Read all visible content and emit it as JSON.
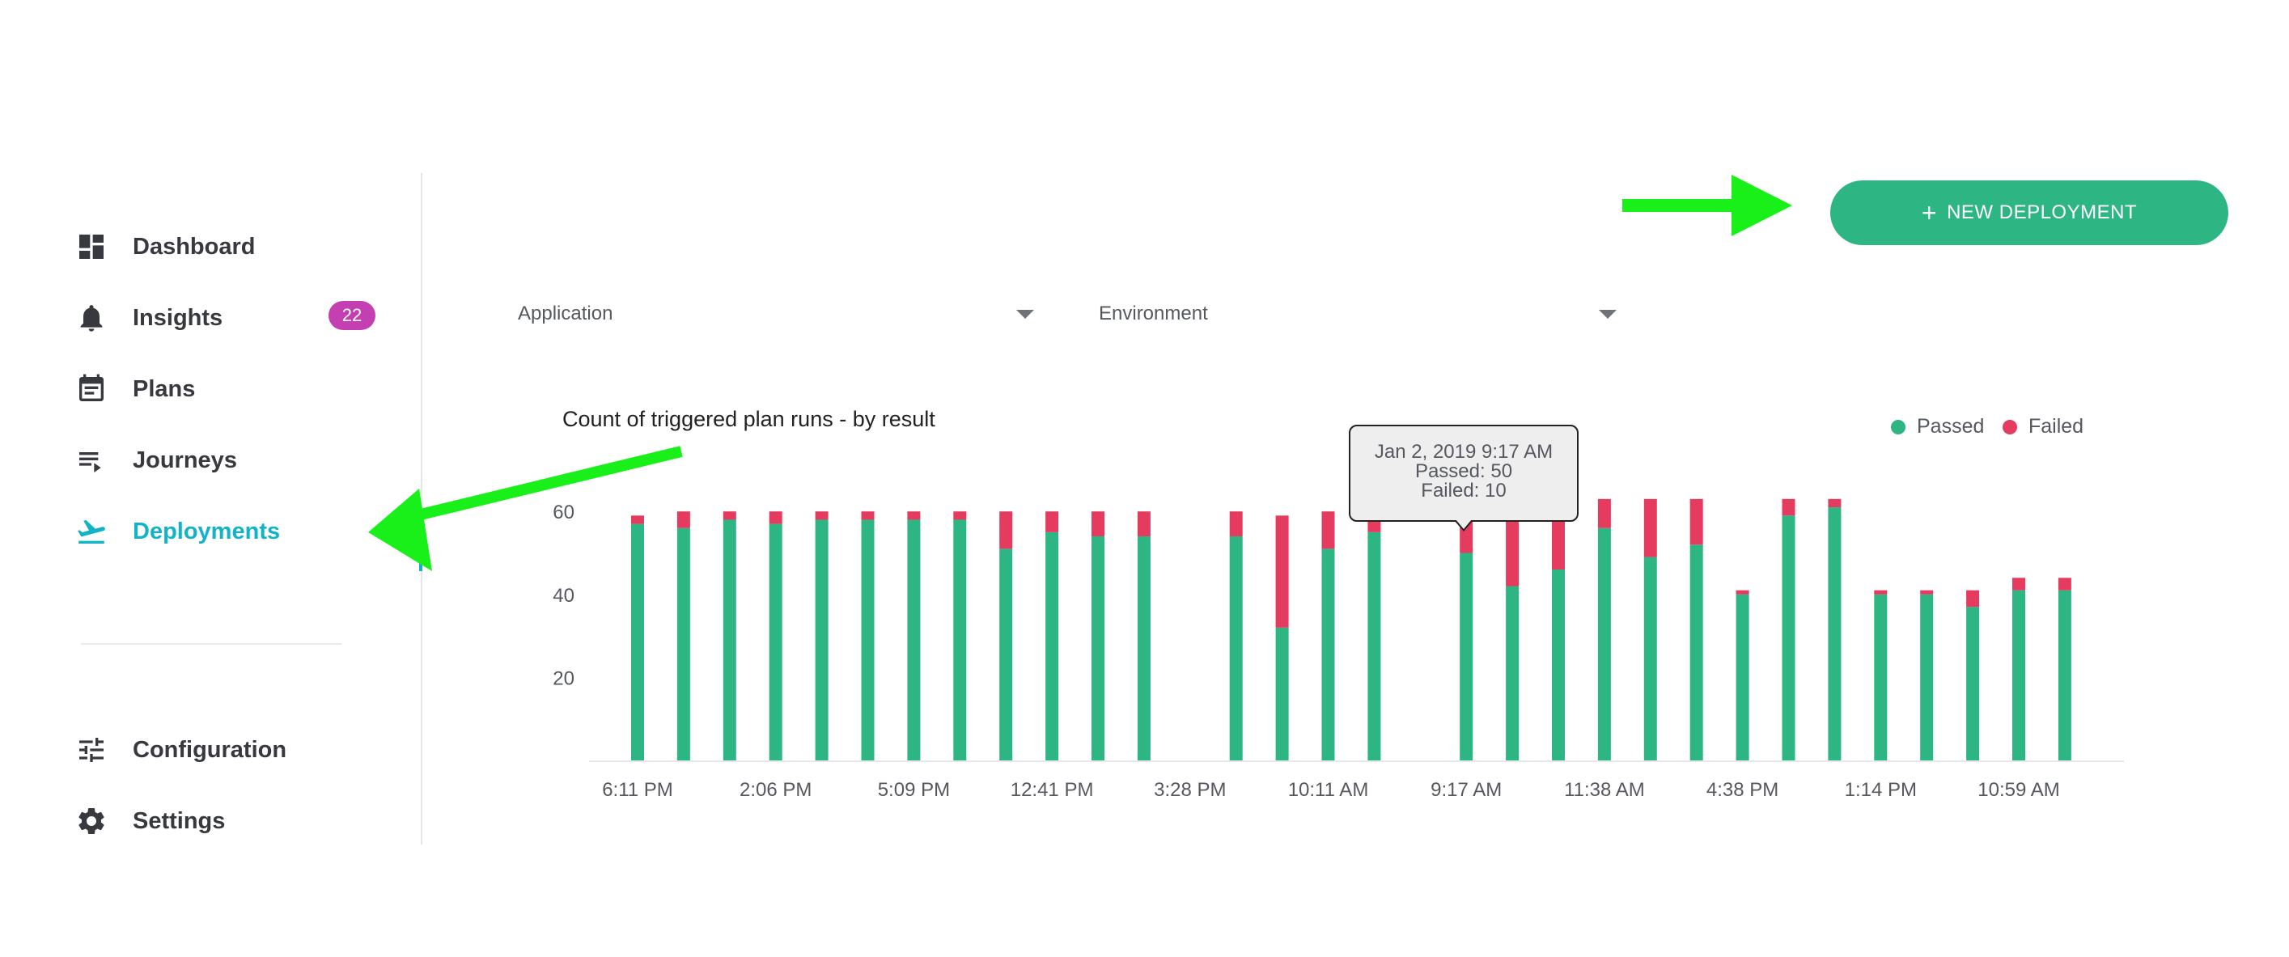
{
  "sidebar": {
    "items": [
      {
        "label": "Dashboard",
        "icon": "dashboard-icon"
      },
      {
        "label": "Insights",
        "icon": "bell-icon",
        "badge": "22"
      },
      {
        "label": "Plans",
        "icon": "calendar-icon"
      },
      {
        "label": "Journeys",
        "icon": "playlist-icon"
      },
      {
        "label": "Deployments",
        "icon": "airplane-icon",
        "active": true
      }
    ],
    "bottom_items": [
      {
        "label": "Configuration",
        "icon": "sliders-icon"
      },
      {
        "label": "Settings",
        "icon": "gear-icon"
      }
    ]
  },
  "header": {
    "new_deployment_label": "NEW DEPLOYMENT",
    "new_deployment_plus": "+"
  },
  "filters": {
    "application_label": "Application",
    "environment_label": "Environment"
  },
  "chart_title": "Count of triggered plan runs - by result",
  "tooltip": {
    "date": "Jan 2, 2019 9:17 AM",
    "passed": "Passed: 50",
    "failed": "Failed: 10"
  },
  "colors": {
    "passed": "#2eb584",
    "failed": "#e53b5e",
    "accent": "#12b3c7",
    "badge": "#c43fb1",
    "annotation_arrow": "#19f01a"
  },
  "chart_data": {
    "type": "bar",
    "stacked": true,
    "x_tick_labels": [
      "6:11 PM",
      "2:06 PM",
      "5:09 PM",
      "12:41 PM",
      "3:28 PM",
      "10:11 AM",
      "9:17 AM",
      "11:38 AM",
      "4:38 PM",
      "1:14 PM",
      "10:59 AM"
    ],
    "y_tick_labels": [
      "20",
      "40",
      "60"
    ],
    "ylim": [
      0,
      65
    ],
    "grid": false,
    "legend_position": "top-right",
    "series": [
      {
        "name": "Passed",
        "color": "#2eb584"
      },
      {
        "name": "Failed",
        "color": "#e53b5e"
      }
    ],
    "bars": [
      {
        "passed": 57,
        "failed": 2
      },
      {
        "passed": 56,
        "failed": 4
      },
      {
        "passed": 58,
        "failed": 2
      },
      {
        "passed": 57,
        "failed": 3
      },
      {
        "passed": 58,
        "failed": 2
      },
      {
        "passed": 58,
        "failed": 2
      },
      {
        "passed": 58,
        "failed": 2
      },
      {
        "passed": 58,
        "failed": 2
      },
      {
        "passed": 51,
        "failed": 9
      },
      {
        "passed": 55,
        "failed": 5
      },
      {
        "passed": 54,
        "failed": 6
      },
      {
        "passed": 54,
        "failed": 6
      },
      null,
      {
        "passed": 54,
        "failed": 6
      },
      {
        "passed": 32,
        "failed": 27
      },
      {
        "passed": 51,
        "failed": 9
      },
      {
        "passed": 55,
        "failed": 5
      },
      null,
      {
        "passed": 50,
        "failed": 10
      },
      {
        "passed": 42,
        "failed": 18
      },
      {
        "passed": 46,
        "failed": 14
      },
      {
        "passed": 56,
        "failed": 7
      },
      {
        "passed": 49,
        "failed": 14
      },
      {
        "passed": 52,
        "failed": 11
      },
      {
        "passed": 40,
        "failed": 1
      },
      {
        "passed": 59,
        "failed": 4
      },
      {
        "passed": 61,
        "failed": 2
      },
      {
        "passed": 40,
        "failed": 1
      },
      {
        "passed": 40,
        "failed": 1
      },
      {
        "passed": 37,
        "failed": 4
      },
      {
        "passed": 41,
        "failed": 3
      },
      {
        "passed": 41,
        "failed": 3
      }
    ]
  }
}
